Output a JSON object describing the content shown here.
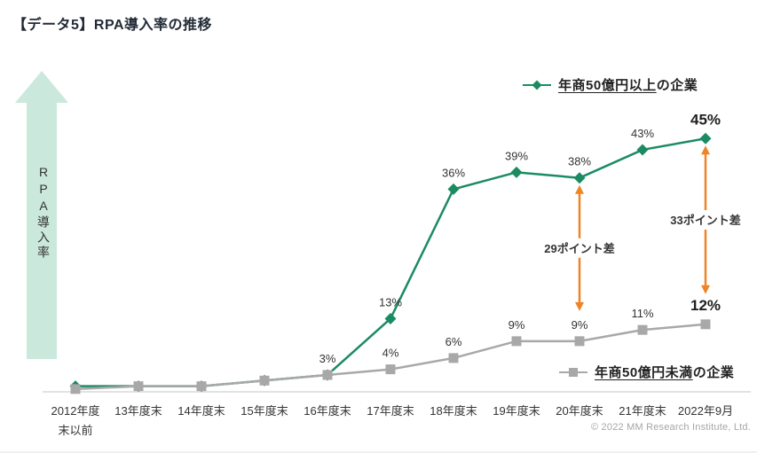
{
  "title": "【データ5】RPA導入率の推移",
  "y_axis_label": "RPA導入率",
  "copyright": "© 2022 MM Research Institute, Ltd.",
  "colors": {
    "series_over_5b": "#1b8b62",
    "series_under_5b": "#a8a8a8",
    "annotation_arrow": "#ee8425",
    "y_axis_arrow_fill": "#cbe8dc",
    "axis_line": "#d9d9d9",
    "label_text": "#333333",
    "title_text": "#232b36",
    "copyright_text": "#a6a6a6"
  },
  "legend": {
    "over_5b": {
      "underlined": "年商50億円以上",
      "rest": "の企業"
    },
    "under_5b": {
      "underlined": "年商50億円未満",
      "rest": "の企業"
    }
  },
  "chart_data": {
    "type": "line",
    "title": "RPA導入率の推移",
    "ylabel": "RPA導入率",
    "ylim": [
      0,
      50
    ],
    "grid": false,
    "categories": [
      "2012年度\n末以前",
      "13年度末",
      "14年度末",
      "15年度末",
      "16年度末",
      "17年度末",
      "18年度末",
      "19年度末",
      "20年度末",
      "21年度末",
      "2022年9月"
    ],
    "series": [
      {
        "name": "年商50億円以上の企業",
        "marker": "diamond",
        "color": "#1b8b62",
        "legend_position": "top-right",
        "values": [
          1,
          1,
          1,
          2,
          3,
          13,
          36,
          39,
          38,
          43,
          45
        ],
        "labels": [
          "",
          "",
          "",
          "",
          "3%",
          "13%",
          "36%",
          "39%",
          "38%",
          "43%",
          "45%"
        ]
      },
      {
        "name": "年商50億円未満の企業",
        "marker": "square",
        "color": "#a8a8a8",
        "legend_position": "bottom-right",
        "values": [
          0.5,
          1,
          1,
          2,
          3,
          4,
          6,
          9,
          9,
          11,
          12
        ],
        "labels": [
          "",
          "",
          "",
          "",
          "",
          "4%",
          "6%",
          "9%",
          "9%",
          "11%",
          "12%"
        ]
      }
    ],
    "annotations": [
      {
        "label": "29ポイント差",
        "category_index": 8,
        "from_value": 38,
        "to_value": 9
      },
      {
        "label": "33ポイント差",
        "category_index": 10,
        "from_value": 45,
        "to_value": 12
      }
    ]
  }
}
